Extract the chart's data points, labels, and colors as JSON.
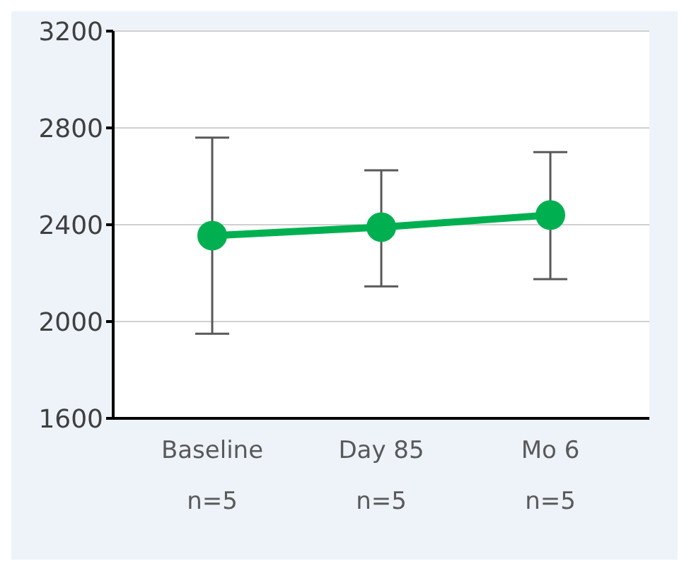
{
  "chart_data": {
    "type": "line",
    "categories": [
      "Baseline\nn=5",
      "Day 85\nn=5",
      "Mo 6\nn=5"
    ],
    "series": [
      {
        "color": "#00b050",
        "values": [
          2355,
          2390,
          2440
        ],
        "errors": [
          [
            1950,
            2760
          ],
          [
            2145,
            2625
          ],
          [
            2175,
            2700
          ]
        ]
      }
    ],
    "ylim": [
      1600,
      3200
    ],
    "yticks": [
      1600,
      2000,
      2400,
      2800,
      3200
    ],
    "grid": "y",
    "marker": "circle",
    "line_style": "solid"
  }
}
